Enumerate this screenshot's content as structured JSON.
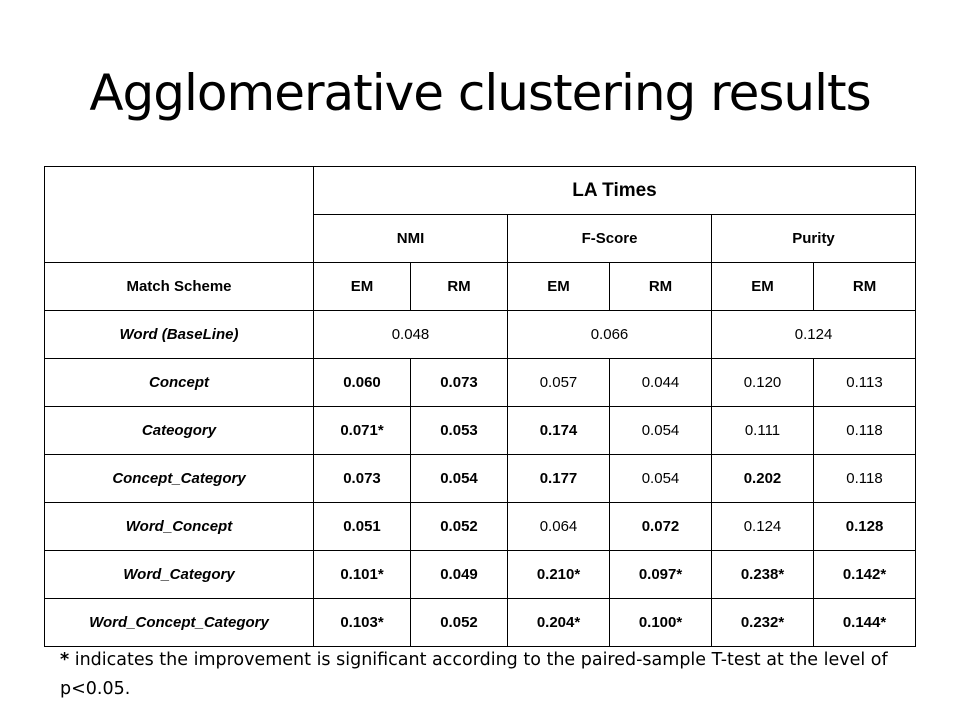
{
  "slide": {
    "title": "Agglomerative clustering results"
  },
  "table": {
    "group_title": "LA Times",
    "metric_headers": [
      "NMI",
      "F-Score",
      "Purity"
    ],
    "scheme_label": "Match Scheme",
    "sub_headers": [
      "EM",
      "RM",
      "EM",
      "RM",
      "EM",
      "RM"
    ],
    "baseline": {
      "label": "Word  (BaseLine)",
      "values": [
        "0.048",
        "0.066",
        "0.124"
      ]
    },
    "rows": [
      {
        "label": "Concept",
        "values": [
          "0.060",
          "0.073",
          "0.057",
          "0.044",
          "0.120",
          "0.113"
        ],
        "bold": [
          true,
          true,
          false,
          false,
          false,
          false
        ]
      },
      {
        "label": "Cateogory",
        "values": [
          "0.071*",
          "0.053",
          "0.174",
          "0.054",
          "0.111",
          "0.118"
        ],
        "bold": [
          true,
          true,
          true,
          false,
          false,
          false
        ]
      },
      {
        "label": "Concept_Category",
        "values": [
          "0.073",
          "0.054",
          "0.177",
          "0.054",
          "0.202",
          "0.118"
        ],
        "bold": [
          true,
          true,
          true,
          false,
          true,
          false
        ]
      },
      {
        "label": "Word_Concept",
        "values": [
          "0.051",
          "0.052",
          "0.064",
          "0.072",
          "0.124",
          "0.128"
        ],
        "bold": [
          true,
          true,
          false,
          true,
          false,
          true
        ]
      },
      {
        "label": "Word_Category",
        "values": [
          "0.101*",
          "0.049",
          "0.210*",
          "0.097*",
          "0.238*",
          "0.142*"
        ],
        "bold": [
          true,
          true,
          true,
          true,
          true,
          true
        ]
      },
      {
        "label": "Word_Concept_Category",
        "values": [
          "0.103*",
          "0.052",
          "0.204*",
          "0.100*",
          "0.232*",
          "0.144*"
        ],
        "bold": [
          true,
          true,
          true,
          true,
          true,
          true
        ]
      }
    ]
  },
  "footnote": {
    "marker": "*",
    "text": " indicates the improvement is significant according to the paired-sample T-test at the level of p<0.05."
  }
}
